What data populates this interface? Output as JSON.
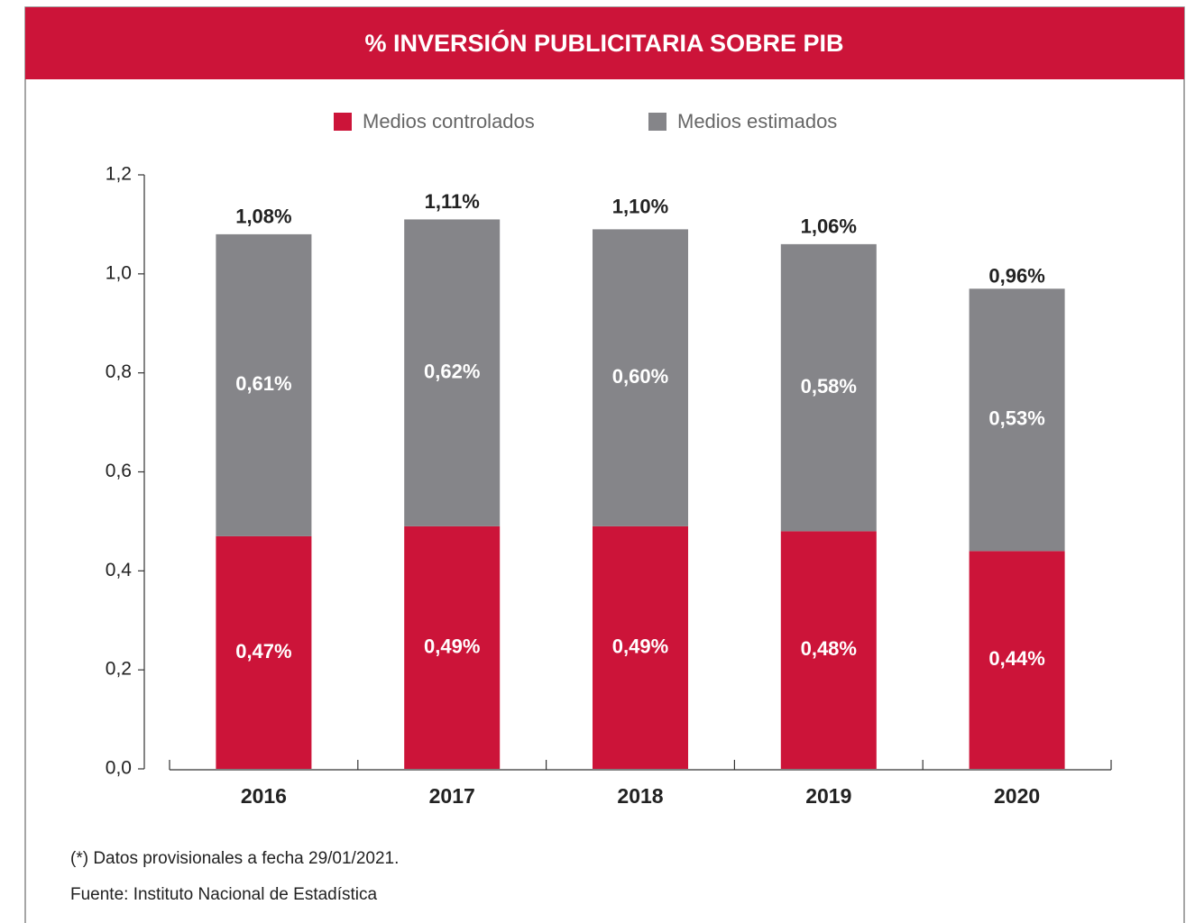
{
  "chart_data": {
    "type": "stacked_bar",
    "title": "% INVERSIÓN PUBLICITARIA SOBRE PIB",
    "categories": [
      "2016",
      "2017",
      "2018",
      "2019",
      "2020"
    ],
    "series": [
      {
        "name": "Medios controlados",
        "color": "#cc1439",
        "values": [
          0.47,
          0.49,
          0.49,
          0.48,
          0.44
        ],
        "value_labels": [
          "0,47%",
          "0,49%",
          "0,49%",
          "0,48%",
          "0,44%"
        ]
      },
      {
        "name": "Medios estimados",
        "color": "#858589",
        "values": [
          0.61,
          0.62,
          0.6,
          0.58,
          0.53
        ],
        "value_labels": [
          "0,61%",
          "0,62%",
          "0,60%",
          "0,58%",
          "0,53%"
        ]
      }
    ],
    "totals": [
      1.08,
      1.11,
      1.1,
      1.06,
      0.96
    ],
    "total_labels": [
      "1,08%",
      "1,11%",
      "1,10%",
      "1,06%",
      "0,96%"
    ],
    "ylim": [
      0,
      1.2
    ],
    "yticks": [
      {
        "value": 0,
        "label": "0,0"
      },
      {
        "value": 0.2,
        "label": "0,2"
      },
      {
        "value": 0.4,
        "label": "0,4"
      },
      {
        "value": 0.6,
        "label": "0,6"
      },
      {
        "value": 0.8,
        "label": "0,8"
      },
      {
        "value": 1.0,
        "label": "1,0"
      },
      {
        "value": 1.2,
        "label": "1,2"
      }
    ],
    "notes": [
      "(*) Datos provisionales a fecha 29/01/2021.",
      "Fuente: Instituto Nacional de Estadística"
    ]
  }
}
